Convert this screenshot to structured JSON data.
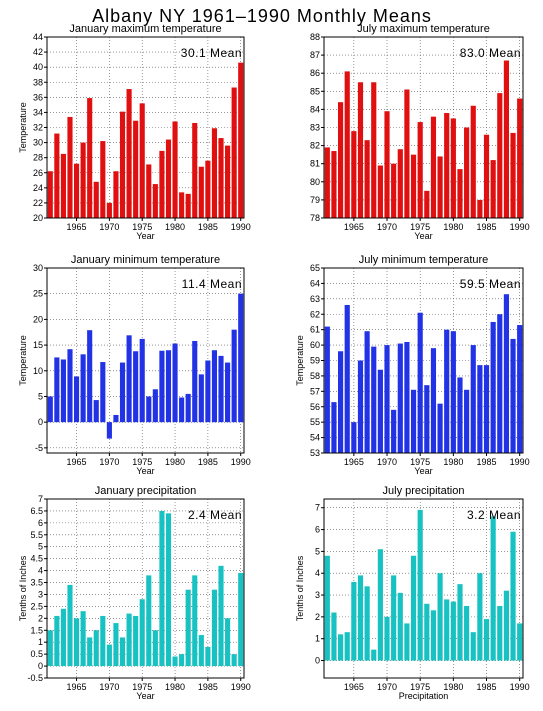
{
  "figure_title": "Albany NY   1961–1990  Monthly Means",
  "colors": {
    "temperature": "#e11010",
    "min_temperature": "#2233e6",
    "precipitation": "#19c2c2",
    "grid": "#555555"
  },
  "chart_data": [
    {
      "type": "bar",
      "title": "January maximum temperature",
      "xlabel": "Year",
      "ylabel": "Temperature",
      "annotation": "30.1 Mean",
      "color": "#e11010",
      "ylim": [
        20,
        44
      ],
      "yticks": [
        20,
        22,
        24,
        26,
        28,
        30,
        32,
        34,
        36,
        38,
        40,
        42,
        44
      ],
      "xticks": [
        1965,
        1970,
        1975,
        1980,
        1985,
        1990
      ],
      "x": [
        1961,
        1962,
        1963,
        1964,
        1965,
        1966,
        1967,
        1968,
        1969,
        1970,
        1971,
        1972,
        1973,
        1974,
        1975,
        1976,
        1977,
        1978,
        1979,
        1980,
        1981,
        1982,
        1983,
        1984,
        1985,
        1986,
        1987,
        1988,
        1989,
        1990
      ],
      "values": [
        26.2,
        31.2,
        28.5,
        33.4,
        27.2,
        30.0,
        35.9,
        24.8,
        30.2,
        22.0,
        26.2,
        34.1,
        37.1,
        32.9,
        35.2,
        27.1,
        24.5,
        28.9,
        30.4,
        32.8,
        23.4,
        23.2,
        32.6,
        26.8,
        27.6,
        31.9,
        30.6,
        29.6,
        37.3,
        40.6
      ]
    },
    {
      "type": "bar",
      "title": "July maximum temperature",
      "xlabel": "Year",
      "ylabel": "",
      "annotation": "83.0 Mean",
      "color": "#e11010",
      "ylim": [
        78,
        88
      ],
      "yticks": [
        78,
        79,
        80,
        81,
        82,
        83,
        84,
        85,
        86,
        87,
        88
      ],
      "xticks": [
        1965,
        1970,
        1975,
        1980,
        1985,
        1990
      ],
      "x": [
        1961,
        1962,
        1963,
        1964,
        1965,
        1966,
        1967,
        1968,
        1969,
        1970,
        1971,
        1972,
        1973,
        1974,
        1975,
        1976,
        1977,
        1978,
        1979,
        1980,
        1981,
        1982,
        1983,
        1984,
        1985,
        1986,
        1987,
        1988,
        1989,
        1990
      ],
      "values": [
        81.9,
        81.7,
        84.4,
        86.1,
        82.8,
        85.5,
        82.3,
        85.5,
        80.9,
        83.9,
        81.0,
        81.8,
        85.1,
        81.5,
        83.3,
        79.5,
        83.6,
        81.4,
        83.8,
        83.5,
        80.7,
        83.0,
        84.2,
        79.0,
        82.6,
        81.2,
        84.9,
        86.7,
        82.7,
        84.6
      ]
    },
    {
      "type": "bar",
      "title": "January minimum temperature",
      "xlabel": "Year",
      "ylabel": "Temperature",
      "annotation": "11.4 Mean",
      "color": "#2233e6",
      "ylim": [
        -6,
        30
      ],
      "yticks": [
        -5,
        0,
        5,
        10,
        15,
        20,
        25,
        30
      ],
      "xticks": [
        1965,
        1970,
        1975,
        1980,
        1985,
        1990
      ],
      "x": [
        1961,
        1962,
        1963,
        1964,
        1965,
        1966,
        1967,
        1968,
        1969,
        1970,
        1971,
        1972,
        1973,
        1974,
        1975,
        1976,
        1977,
        1978,
        1979,
        1980,
        1981,
        1982,
        1983,
        1984,
        1985,
        1986,
        1987,
        1988,
        1989,
        1990
      ],
      "values": [
        5.0,
        12.6,
        12.2,
        14.2,
        8.9,
        13.2,
        17.9,
        4.3,
        11.7,
        -3.2,
        1.4,
        11.6,
        16.9,
        13.8,
        16.2,
        5.0,
        6.4,
        13.9,
        14.0,
        15.3,
        4.8,
        5.5,
        15.8,
        9.3,
        12.0,
        14.0,
        12.9,
        11.6,
        18.0,
        25.0
      ]
    },
    {
      "type": "bar",
      "title": "July minimum temperature",
      "xlabel": "Year",
      "ylabel": "Temperature",
      "annotation": "59.5 Mean",
      "color": "#2233e6",
      "ylim": [
        53,
        65
      ],
      "yticks": [
        53,
        54,
        55,
        56,
        57,
        58,
        59,
        60,
        61,
        62,
        63,
        64,
        65
      ],
      "xticks": [
        1965,
        1970,
        1975,
        1980,
        1985,
        1990
      ],
      "x": [
        1961,
        1962,
        1963,
        1964,
        1965,
        1966,
        1967,
        1968,
        1969,
        1970,
        1971,
        1972,
        1973,
        1974,
        1975,
        1976,
        1977,
        1978,
        1979,
        1980,
        1981,
        1982,
        1983,
        1984,
        1985,
        1986,
        1987,
        1988,
        1989,
        1990
      ],
      "values": [
        61.2,
        56.3,
        59.6,
        62.6,
        55.0,
        59.0,
        60.9,
        59.9,
        58.4,
        60.0,
        55.8,
        60.1,
        60.2,
        57.1,
        62.1,
        57.4,
        59.8,
        56.2,
        61.0,
        60.9,
        57.9,
        57.1,
        60.0,
        58.7,
        58.7,
        61.5,
        62.0,
        63.3,
        60.4,
        61.3
      ]
    },
    {
      "type": "bar",
      "title": "January precipitation",
      "xlabel": "Year",
      "ylabel": "Tenths of Inches",
      "annotation": "2.4 Mean",
      "color": "#19c2c2",
      "ylim": [
        -0.5,
        7
      ],
      "yticks": [
        -0.5,
        0,
        0.5,
        1,
        1.5,
        2,
        2.5,
        3,
        3.5,
        4,
        4.5,
        5,
        5.5,
        6,
        6.5,
        7
      ],
      "xticks": [
        1965,
        1970,
        1975,
        1980,
        1985,
        1990
      ],
      "x": [
        1961,
        1962,
        1963,
        1964,
        1965,
        1966,
        1967,
        1968,
        1969,
        1970,
        1971,
        1972,
        1973,
        1974,
        1975,
        1976,
        1977,
        1978,
        1979,
        1980,
        1981,
        1982,
        1983,
        1984,
        1985,
        1986,
        1987,
        1988,
        1989,
        1990
      ],
      "values": [
        1.5,
        2.1,
        2.4,
        3.4,
        2.0,
        2.3,
        1.2,
        1.5,
        2.1,
        0.9,
        1.8,
        1.2,
        2.2,
        2.1,
        2.8,
        3.8,
        1.5,
        6.5,
        6.4,
        0.4,
        0.5,
        3.2,
        3.8,
        1.3,
        0.8,
        3.2,
        4.2,
        2.0,
        0.5,
        3.9
      ]
    },
    {
      "type": "bar",
      "title": "July precipitation",
      "xlabel": "Precipitation",
      "ylabel": "Tenths of Inches",
      "annotation": "3.2 Mean",
      "color": "#19c2c2",
      "ylim": [
        -0.8,
        7.4
      ],
      "yticks": [
        0,
        1,
        2,
        3,
        4,
        5,
        6,
        7
      ],
      "xticks": [
        1965,
        1970,
        1975,
        1980,
        1985,
        1990
      ],
      "x": [
        1961,
        1962,
        1963,
        1964,
        1965,
        1966,
        1967,
        1968,
        1969,
        1970,
        1971,
        1972,
        1973,
        1974,
        1975,
        1976,
        1977,
        1978,
        1979,
        1980,
        1981,
        1982,
        1983,
        1984,
        1985,
        1986,
        1987,
        1988,
        1989,
        1990
      ],
      "values": [
        4.8,
        2.2,
        1.2,
        1.3,
        3.6,
        3.9,
        3.4,
        0.5,
        5.1,
        2.0,
        3.9,
        3.1,
        1.7,
        4.8,
        6.9,
        2.6,
        2.3,
        4.0,
        2.8,
        2.7,
        3.5,
        2.5,
        1.3,
        4.0,
        1.9,
        6.6,
        2.5,
        3.2,
        5.9,
        1.7
      ]
    }
  ]
}
